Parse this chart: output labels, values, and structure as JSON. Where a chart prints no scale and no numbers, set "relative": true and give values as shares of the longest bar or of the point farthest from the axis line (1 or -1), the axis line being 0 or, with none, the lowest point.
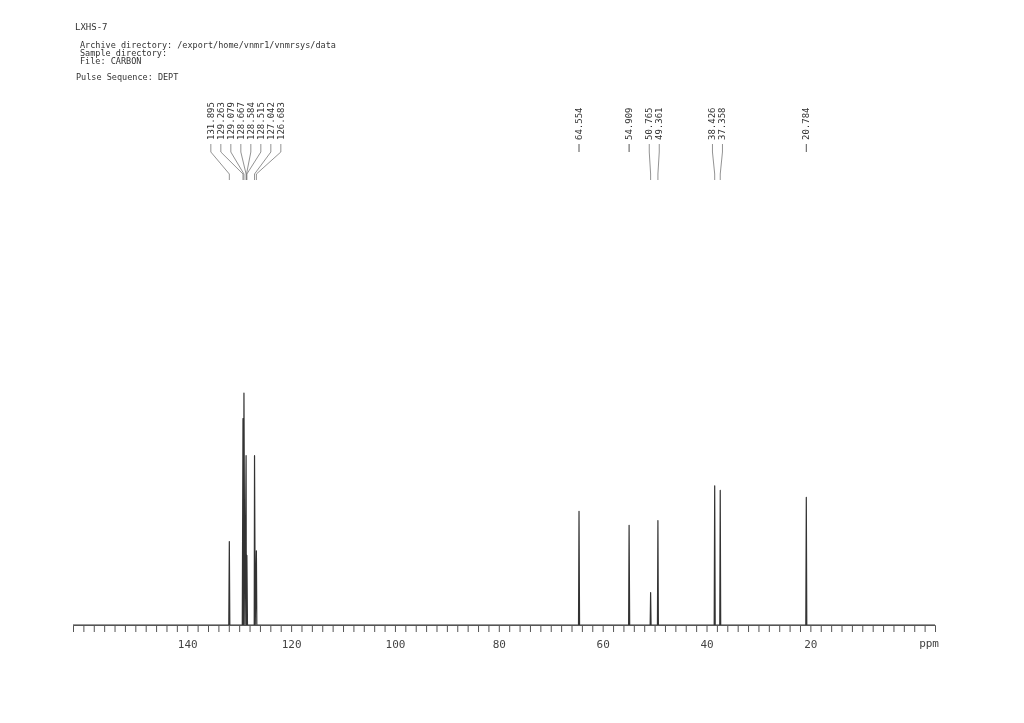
{
  "chart_data": {
    "type": "line",
    "title": "LXHS-7",
    "relative": true,
    "xlabel": "ppm",
    "xlim": [
      162,
      -4
    ],
    "xticks": [
      {
        "value": 160,
        "label": null
      },
      {
        "value": 158,
        "label": null
      },
      {
        "value": 156,
        "label": null
      },
      {
        "value": 154,
        "label": null
      },
      {
        "value": 152,
        "label": null
      },
      {
        "value": 150,
        "label": null
      },
      {
        "value": 148,
        "label": null
      },
      {
        "value": 146,
        "label": null
      },
      {
        "value": 144,
        "label": null
      },
      {
        "value": 142,
        "label": null
      },
      140,
      {
        "value": 138,
        "label": null
      },
      {
        "value": 136,
        "label": null
      },
      {
        "value": 134,
        "label": null
      },
      {
        "value": 132,
        "label": null
      },
      {
        "value": 130,
        "label": null
      },
      {
        "value": 128,
        "label": null
      },
      {
        "value": 126,
        "label": null
      },
      {
        "value": 124,
        "label": null
      },
      {
        "value": 122,
        "label": null
      },
      120,
      {
        "value": 118,
        "label": null
      },
      {
        "value": 116,
        "label": null
      },
      {
        "value": 114,
        "label": null
      },
      {
        "value": 112,
        "label": null
      },
      {
        "value": 110,
        "label": null
      },
      {
        "value": 108,
        "label": null
      },
      {
        "value": 106,
        "label": null
      },
      {
        "value": 104,
        "label": null
      },
      {
        "value": 102,
        "label": null
      },
      100,
      {
        "value": 98,
        "label": null
      },
      {
        "value": 96,
        "label": null
      },
      {
        "value": 94,
        "label": null
      },
      {
        "value": 92,
        "label": null
      },
      {
        "value": 90,
        "label": null
      },
      {
        "value": 88,
        "label": null
      },
      {
        "value": 86,
        "label": null
      },
      {
        "value": 84,
        "label": null
      },
      {
        "value": 82,
        "label": null
      },
      80,
      {
        "value": 78,
        "label": null
      },
      {
        "value": 76,
        "label": null
      },
      {
        "value": 74,
        "label": null
      },
      {
        "value": 72,
        "label": null
      },
      {
        "value": 70,
        "label": null
      },
      {
        "value": 68,
        "label": null
      },
      {
        "value": 66,
        "label": null
      },
      {
        "value": 64,
        "label": null
      },
      {
        "value": 62,
        "label": null
      },
      60,
      {
        "value": 58,
        "label": null
      },
      {
        "value": 56,
        "label": null
      },
      {
        "value": 54,
        "label": null
      },
      {
        "value": 52,
        "label": null
      },
      {
        "value": 50,
        "label": null
      },
      {
        "value": 48,
        "label": null
      },
      {
        "value": 46,
        "label": null
      },
      {
        "value": 44,
        "label": null
      },
      {
        "value": 42,
        "label": null
      },
      40,
      {
        "value": 38,
        "label": null
      },
      {
        "value": 36,
        "label": null
      },
      {
        "value": 34,
        "label": null
      },
      {
        "value": 32,
        "label": null
      },
      {
        "value": 30,
        "label": null
      },
      {
        "value": 28,
        "label": null
      },
      {
        "value": 26,
        "label": null
      },
      {
        "value": 24,
        "label": null
      },
      {
        "value": 22,
        "label": null
      },
      20,
      {
        "value": 18,
        "label": null
      },
      {
        "value": 16,
        "label": null
      },
      {
        "value": 14,
        "label": null
      },
      {
        "value": 12,
        "label": null
      },
      {
        "value": 10,
        "label": null
      },
      {
        "value": 8,
        "label": null
      },
      {
        "value": 6,
        "label": null
      },
      {
        "value": 4,
        "label": null
      },
      {
        "value": 2,
        "label": null
      },
      {
        "value": 0,
        "label": null
      },
      {
        "value": -2,
        "label": null
      }
    ],
    "grid": false,
    "marker": "none",
    "line_style": "solid",
    "series": [
      {
        "color": "#333333",
        "x": [
          162,
          132.0,
          131.895,
          131.8,
          129.4,
          129.263,
          129.17,
          129.079,
          128.9,
          128.667,
          128.62,
          128.584,
          128.55,
          128.515,
          128.4,
          127.1,
          127.042,
          126.9,
          126.683,
          126.6,
          64.65,
          64.554,
          64.45,
          55.0,
          54.909,
          54.8,
          50.85,
          50.765,
          50.68,
          49.45,
          49.361,
          49.27,
          38.52,
          38.426,
          38.33,
          37.45,
          37.358,
          37.27,
          20.88,
          20.784,
          20.69,
          -4
        ],
        "values": [
          0,
          0,
          0.36,
          0,
          0,
          0.89,
          0,
          1,
          0,
          0.73,
          0,
          0.3,
          0,
          0.3,
          0,
          0,
          0.73,
          0,
          0.32,
          0,
          0,
          0.49,
          0,
          0,
          0.43,
          0,
          0,
          0.14,
          0,
          0,
          0.45,
          0,
          0,
          0.6,
          0,
          0,
          0.58,
          0,
          0,
          0.55,
          0,
          0
        ]
      }
    ],
    "annotations": [
      "Archive directory: /export/home/vnmr1/vnmrsys/data",
      "Sample directory:",
      "File: CARBON",
      "Pulse Sequence: DEPT",
      "131.895",
      "129.263",
      "129.079",
      "128.667",
      "128.584",
      "128.515",
      "127.042",
      "126.683",
      "64.554",
      "54.909",
      "50.765",
      "49.361",
      "38.426",
      "37.358",
      "20.784"
    ]
  }
}
